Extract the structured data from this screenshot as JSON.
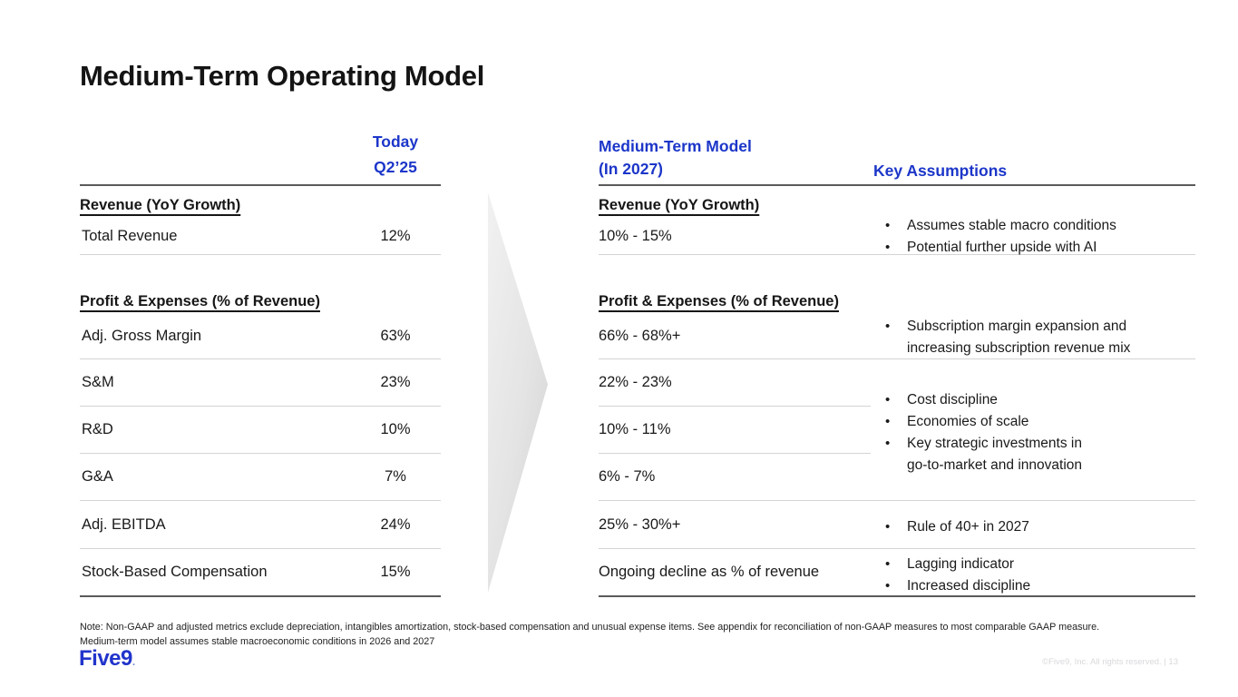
{
  "slide": {
    "title": "Medium-Term Operating Model",
    "accent_blue": "#1c36c9",
    "footnote_line1": "Note: Non-GAAP and adjusted metrics exclude depreciation, intangibles amortization, stock-based compensation and unusual expense items. See appendix for reconciliation of non-GAAP measures to most comparable GAAP measure.",
    "footnote_line2": "Medium-term model assumes stable macroeconomic conditions in 2026 and 2027",
    "logo_text": "Five9",
    "logo_dot": ".",
    "copyright": "©Five9, Inc. All rights reserved. | 13"
  },
  "left_table": {
    "column_header_line1": "Today",
    "column_header_line2": "Q2’25",
    "section1_heading": "Revenue (YoY Growth)",
    "section2_heading": "Profit & Expenses (% of Revenue)",
    "rows": [
      {
        "label": "Total Revenue",
        "value": "12%"
      },
      {
        "label": "Adj. Gross Margin",
        "value": "63%"
      },
      {
        "label": "S&M",
        "value": "23%"
      },
      {
        "label": "R&D",
        "value": "10%"
      },
      {
        "label": "G&A",
        "value": "7%"
      },
      {
        "label": "Adj. EBITDA",
        "value": "24%"
      },
      {
        "label": "Stock-Based Compensation",
        "value": "15%"
      }
    ]
  },
  "right_table": {
    "column_header_line1": "Medium-Term Model",
    "column_header_line2": "(In 2027)",
    "assumptions_header": "Key Assumptions",
    "section1_heading": "Revenue (YoY Growth)",
    "section2_heading": "Profit & Expenses (% of Revenue)",
    "rows": [
      {
        "value": "10% - 15%"
      },
      {
        "value": "66% - 68%+"
      },
      {
        "value": "22% - 23%"
      },
      {
        "value": "10% - 11%"
      },
      {
        "value": "6% - 7%"
      },
      {
        "value": "25% - 30%+"
      },
      {
        "value": "Ongoing decline as % of revenue"
      }
    ],
    "assumptions": {
      "revenue": [
        "Assumes stable macro conditions",
        "Potential further upside with AI"
      ],
      "gross_margin": [
        "Subscription margin expansion and",
        "increasing subscription revenue mix"
      ],
      "opex": [
        "Cost discipline",
        "Economies of scale",
        "Key strategic investments in",
        "go-to-market and innovation"
      ],
      "ebitda": [
        "Rule of 40+ in 2027"
      ],
      "sbc": [
        "Lagging indicator",
        "Increased discipline"
      ]
    }
  }
}
